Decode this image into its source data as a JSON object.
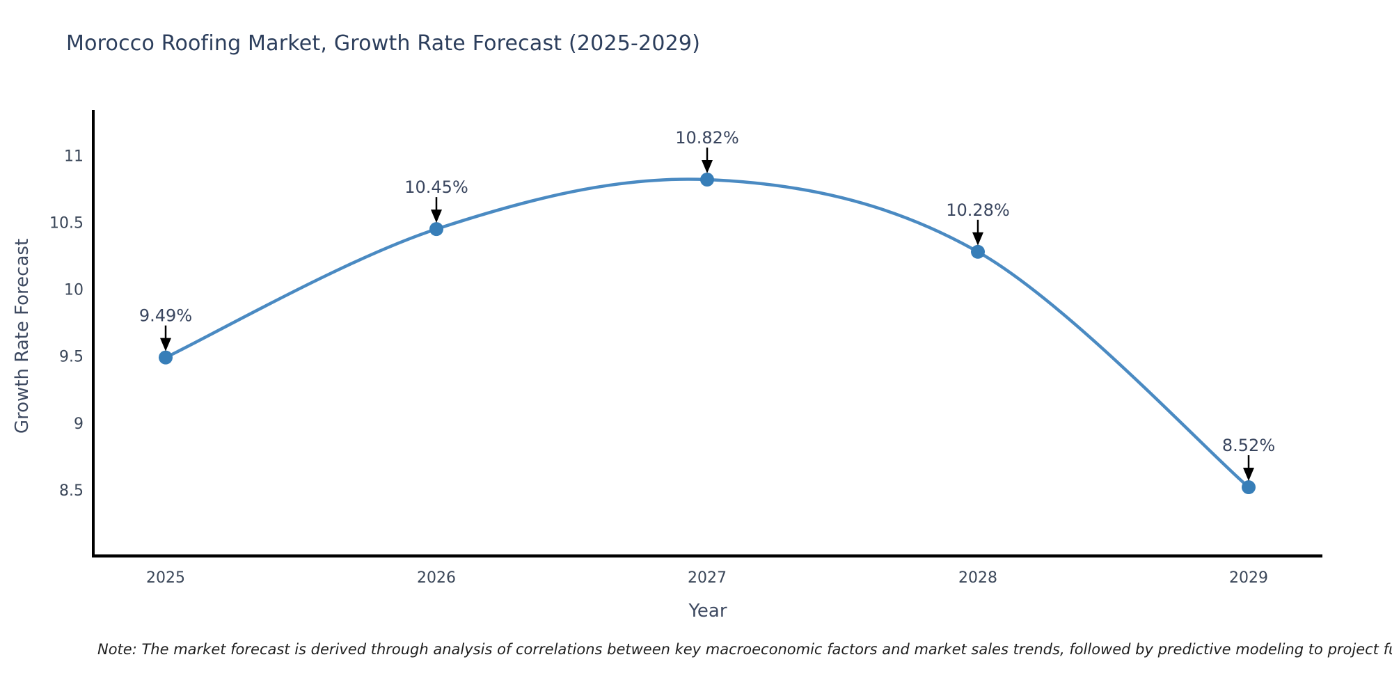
{
  "title": "Morocco Roofing Market, Growth Rate Forecast (2025-2029)",
  "note": "Note: The market forecast is derived through analysis of correlations between key macroeconomic factors and market sales trends, followed by predictive modeling to project future sales.",
  "chart_data": {
    "type": "line",
    "title": "Morocco Roofing Market, Growth Rate Forecast (2025-2029)",
    "xlabel": "Year",
    "ylabel": "Growth Rate Forecast",
    "categories": [
      "2025",
      "2026",
      "2027",
      "2028",
      "2029"
    ],
    "series": [
      {
        "name": "Growth Rate Forecast",
        "values": [
          9.49,
          10.45,
          10.82,
          10.28,
          8.52
        ]
      }
    ],
    "point_labels": [
      "9.49%",
      "10.45%",
      "10.82%",
      "10.28%",
      "8.52%"
    ],
    "yticks": [
      8.5,
      9,
      9.5,
      10,
      10.5,
      11
    ],
    "ylim": [
      8.0,
      11.33
    ],
    "grid": false,
    "legend": "none",
    "annotation_style": "black-down-arrow",
    "colors": {
      "line": "#4a8ac2",
      "marker": "#377eb8",
      "arrow": "#000000",
      "spine": "#000000",
      "title": "#2c3e5c",
      "tick_label": "#3b4759",
      "axis_label": "#3e4a61",
      "annotation": "#39455e",
      "note": "#1f1f1f"
    }
  }
}
